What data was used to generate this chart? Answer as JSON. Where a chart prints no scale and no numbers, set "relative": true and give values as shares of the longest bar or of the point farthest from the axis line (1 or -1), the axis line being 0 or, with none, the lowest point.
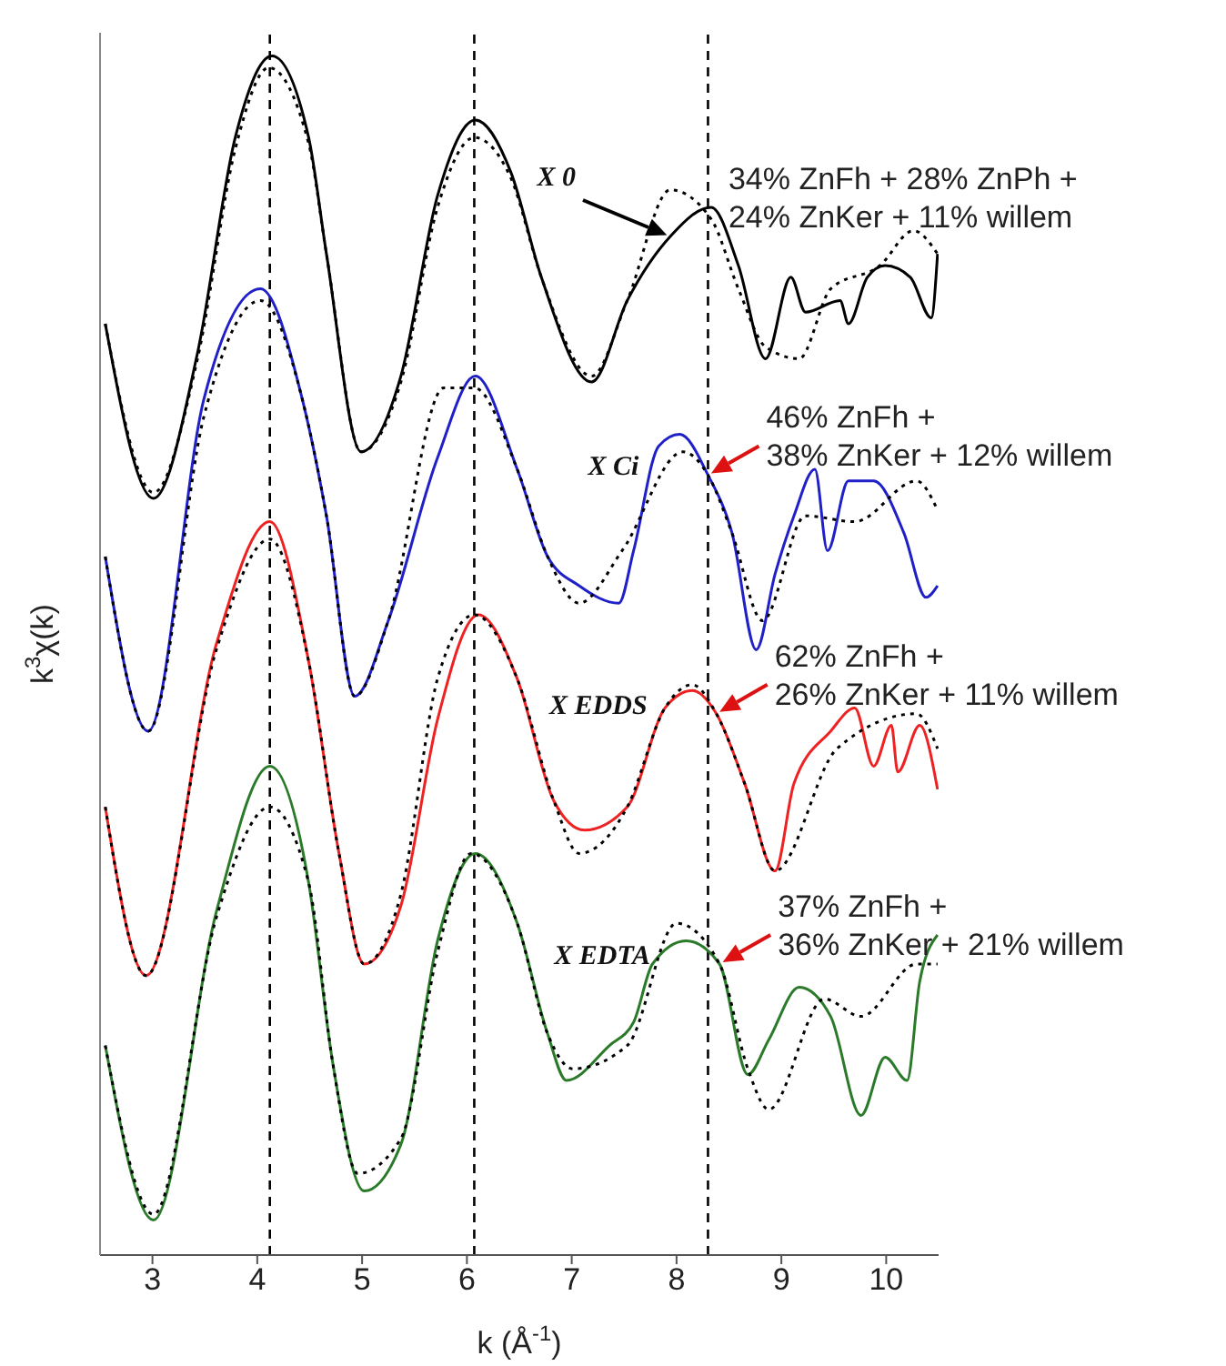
{
  "chart_data": {
    "type": "line",
    "relative": true,
    "xlabel": "k (Å$^{-1}$)",
    "ylabel": "k$^{3}$χ(k)",
    "marker": "none",
    "xlim": [
      2.5,
      10.5
    ],
    "xticks": [
      3,
      4,
      5,
      6,
      7,
      8,
      9,
      10
    ],
    "ref_lines": [
      {
        "axis": "x",
        "value": 4.12,
        "color": "#000000",
        "line_style": "dashed"
      },
      {
        "axis": "x",
        "value": 6.07,
        "color": "#000000",
        "line_style": "dashed"
      },
      {
        "axis": "x",
        "value": 8.3,
        "color": "#000000",
        "line_style": "dashed"
      }
    ],
    "series": [
      {
        "name": "X 0",
        "color": "#000000",
        "line_style": "solid",
        "x": [
          2.55,
          3.01,
          3.43,
          3.79,
          4.14,
          4.49,
          4.66,
          4.99,
          5.37,
          5.72,
          6.08,
          6.42,
          6.71,
          7.19,
          7.53,
          7.94,
          8.33,
          8.59,
          8.85,
          9.09,
          9.23,
          9.56,
          9.64,
          9.82,
          9.99,
          10.23,
          10.43,
          10.49
        ],
        "values": [
          0.77,
          0.62,
          0.745,
          0.93,
          1.0,
          0.93,
          0.83,
          0.66,
          0.725,
          0.88,
          0.945,
          0.9,
          0.81,
          0.72,
          0.79,
          0.845,
          0.87,
          0.82,
          0.74,
          0.81,
          0.78,
          0.79,
          0.77,
          0.81,
          0.82,
          0.81,
          0.775,
          0.83
        ]
      },
      {
        "color": "#000000",
        "line_style": "dotted",
        "x": [
          2.55,
          3.01,
          3.43,
          3.79,
          4.11,
          4.49,
          4.66,
          4.99,
          5.37,
          5.72,
          6.07,
          6.42,
          6.71,
          7.19,
          7.53,
          7.94,
          8.33,
          8.59,
          8.85,
          9.17,
          9.47,
          9.94,
          10.26,
          10.49
        ],
        "values": [
          0.77,
          0.625,
          0.74,
          0.92,
          0.99,
          0.925,
          0.83,
          0.66,
          0.72,
          0.87,
          0.93,
          0.895,
          0.81,
          0.725,
          0.79,
          0.885,
          0.86,
          0.8,
          0.75,
          0.74,
          0.8,
          0.82,
          0.85,
          0.83
        ]
      },
      {
        "name": "X Ci",
        "color": "#2020c8",
        "line_style": "solid",
        "x": [
          2.55,
          2.96,
          3.49,
          4.03,
          4.43,
          4.66,
          4.93,
          5.25,
          5.72,
          6.08,
          6.48,
          6.77,
          7.07,
          7.45,
          7.59,
          7.83,
          8.03,
          8.3,
          8.53,
          8.76,
          8.94,
          9.12,
          9.32,
          9.44,
          9.64,
          9.88,
          10.17,
          10.38,
          10.49
        ],
        "values": [
          0.57,
          0.42,
          0.705,
          0.8,
          0.705,
          0.605,
          0.45,
          0.515,
          0.655,
          0.725,
          0.645,
          0.57,
          0.545,
          0.53,
          0.575,
          0.665,
          0.675,
          0.64,
          0.59,
          0.49,
          0.555,
          0.605,
          0.645,
          0.575,
          0.635,
          0.635,
          0.59,
          0.535,
          0.545
        ]
      },
      {
        "color": "#000000",
        "line_style": "dotted",
        "x": [
          2.55,
          2.96,
          3.49,
          4.03,
          4.43,
          4.66,
          4.93,
          5.25,
          5.78,
          6.07,
          6.48,
          6.77,
          7.07,
          7.48,
          8.06,
          8.3,
          8.53,
          8.82,
          9.23,
          9.7,
          10.29,
          10.49
        ],
        "values": [
          0.57,
          0.42,
          0.69,
          0.79,
          0.705,
          0.605,
          0.45,
          0.515,
          0.715,
          0.715,
          0.645,
          0.57,
          0.53,
          0.575,
          0.66,
          0.64,
          0.59,
          0.515,
          0.605,
          0.6,
          0.635,
          0.61
        ]
      },
      {
        "name": "X EDDS",
        "color": "#ee2222",
        "line_style": "solid",
        "x": [
          2.55,
          2.94,
          3.61,
          4.12,
          4.49,
          4.78,
          5.02,
          5.37,
          5.72,
          6.11,
          6.48,
          6.83,
          7.12,
          7.53,
          7.89,
          8.15,
          8.38,
          8.65,
          8.94,
          9.12,
          9.47,
          9.7,
          9.88,
          10.05,
          10.11,
          10.32,
          10.49
        ],
        "values": [
          0.355,
          0.21,
          0.495,
          0.6,
          0.48,
          0.315,
          0.22,
          0.27,
          0.43,
          0.52,
          0.465,
          0.36,
          0.335,
          0.355,
          0.44,
          0.455,
          0.435,
          0.375,
          0.3,
          0.375,
          0.42,
          0.44,
          0.39,
          0.425,
          0.385,
          0.425,
          0.37
        ]
      },
      {
        "color": "#000000",
        "line_style": "dotted",
        "x": [
          2.55,
          2.94,
          3.61,
          4.12,
          4.49,
          4.78,
          5.02,
          5.37,
          5.72,
          6.07,
          6.48,
          6.83,
          7.07,
          7.53,
          7.89,
          8.15,
          8.38,
          8.65,
          8.94,
          9.53,
          10.29,
          10.49
        ],
        "values": [
          0.355,
          0.21,
          0.49,
          0.585,
          0.48,
          0.315,
          0.22,
          0.28,
          0.465,
          0.52,
          0.465,
          0.36,
          0.315,
          0.355,
          0.44,
          0.46,
          0.435,
          0.375,
          0.3,
          0.405,
          0.435,
          0.405
        ]
      },
      {
        "name": "X EDTA",
        "color": "#2a7a2a",
        "line_style": "solid",
        "x": [
          2.55,
          3.01,
          3.61,
          4.12,
          4.49,
          4.72,
          5.02,
          5.37,
          5.72,
          6.08,
          6.48,
          6.77,
          6.95,
          7.36,
          7.59,
          7.77,
          8.09,
          8.41,
          8.68,
          8.88,
          9.17,
          9.47,
          9.76,
          9.99,
          10.2,
          10.32,
          10.49
        ],
        "values": [
          0.15,
          0,
          0.265,
          0.39,
          0.29,
          0.135,
          0.025,
          0.065,
          0.24,
          0.315,
          0.255,
          0.16,
          0.12,
          0.15,
          0.17,
          0.22,
          0.24,
          0.22,
          0.125,
          0.155,
          0.2,
          0.175,
          0.09,
          0.14,
          0.12,
          0.205,
          0.245
        ]
      },
      {
        "color": "#000000",
        "line_style": "dotted",
        "x": [
          2.55,
          3.01,
          3.61,
          4.12,
          4.49,
          4.72,
          4.96,
          5.37,
          5.72,
          6.04,
          6.48,
          6.77,
          7.01,
          7.53,
          8.0,
          8.41,
          8.68,
          8.88,
          9.41,
          9.76,
          10.29,
          10.49
        ],
        "values": [
          0.15,
          0.005,
          0.26,
          0.355,
          0.29,
          0.135,
          0.04,
          0.07,
          0.23,
          0.315,
          0.255,
          0.16,
          0.13,
          0.15,
          0.255,
          0.22,
          0.13,
          0.095,
          0.19,
          0.175,
          0.22,
          0.22
        ]
      }
    ],
    "annotations": [
      {
        "text": "34% ZnFh + 28% ZnPh +\n24% ZnKer + 11% willem",
        "x": 7.94,
        "y": 0.845
      },
      {
        "text": "46% ZnFh +\n38% ZnKer + 12% willem",
        "x": 8.3,
        "y": 0.64
      },
      {
        "text": "62% ZnFh +\n26% ZnKer + 11% willem",
        "x": 8.38,
        "y": 0.435
      },
      {
        "text": "37% ZnFh +\n36% ZnKer + 21% willem",
        "x": 8.41,
        "y": 0.22
      }
    ]
  }
}
